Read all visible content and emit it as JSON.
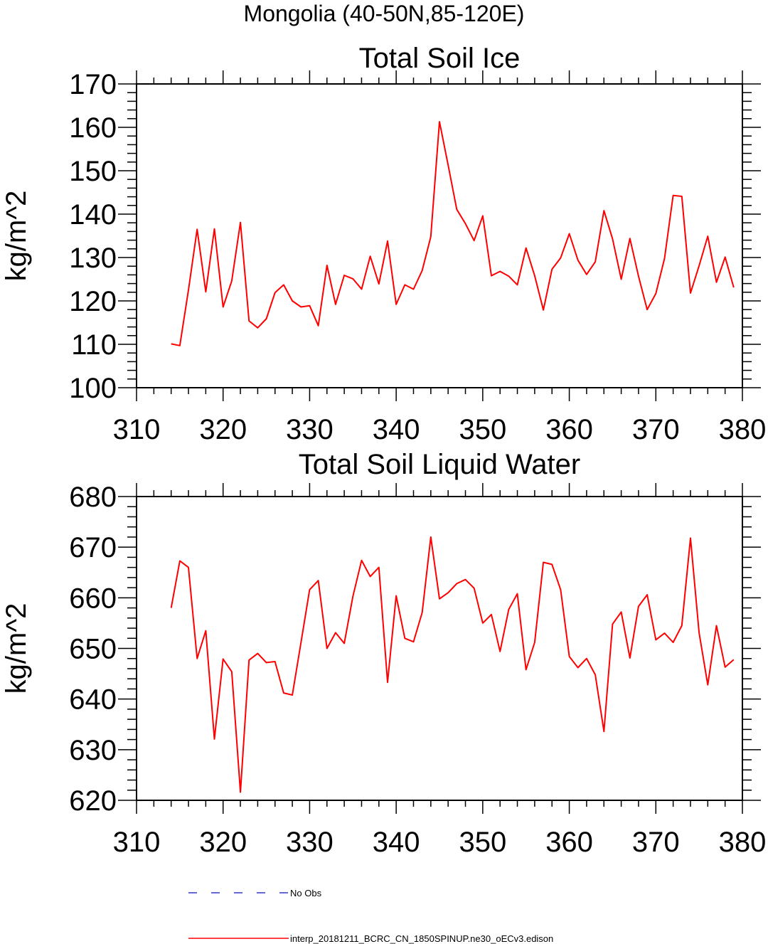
{
  "figure_title": "Mongolia (40-50N,85-120E)",
  "legend": {
    "obs_label": "No Obs",
    "obs_color": "#3333cc",
    "model_label": "interp_20181211_BCRC_CN_1850SPINUP.ne30_oECv3.edison",
    "model_color": "#ff0000"
  },
  "chart_data": [
    {
      "type": "line",
      "title": "Total Soil Ice",
      "ylabel": "kg/m^2",
      "xlabel": "",
      "xlim": [
        310,
        380
      ],
      "ylim": [
        100,
        170
      ],
      "xticks": [
        310,
        320,
        330,
        340,
        350,
        360,
        370,
        380
      ],
      "yticks": [
        100,
        110,
        120,
        130,
        140,
        150,
        160,
        170
      ],
      "grid": false,
      "series": [
        {
          "color": "#ff0000",
          "x": [
            314,
            315,
            316,
            317,
            318,
            319,
            320,
            321,
            322,
            323,
            324,
            325,
            326,
            327,
            328,
            329,
            330,
            331,
            332,
            333,
            334,
            335,
            336,
            337,
            338,
            339,
            340,
            341,
            342,
            343,
            344,
            345,
            346,
            347,
            348,
            349,
            350,
            351,
            352,
            353,
            354,
            355,
            356,
            357,
            358,
            359,
            360,
            361,
            362,
            363,
            364,
            365,
            366,
            367,
            368,
            369,
            370,
            371,
            372,
            373,
            374,
            375,
            376,
            377,
            378,
            379
          ],
          "y": [
            110.1,
            109.7,
            122.5,
            136.5,
            122.1,
            136.6,
            118.6,
            124.6,
            138.1,
            115.4,
            113.8,
            115.9,
            121.9,
            123.7,
            120.0,
            118.6,
            118.9,
            114.3,
            128.2,
            119.2,
            125.9,
            125.1,
            122.7,
            130.3,
            123.9,
            133.8,
            119.2,
            123.7,
            122.7,
            127.0,
            134.8,
            161.3,
            151.3,
            141.1,
            137.8,
            133.9,
            139.6,
            125.8,
            126.8,
            125.7,
            123.7,
            132.2,
            125.8,
            117.9,
            127.3,
            129.9,
            135.5,
            129.4,
            126.1,
            129.0,
            140.8,
            134.3,
            125.0,
            134.4,
            125.7,
            118.0,
            121.7,
            129.8,
            144.3,
            144.1,
            121.8,
            128.1,
            134.9,
            124.3,
            130.1,
            123.1
          ]
        }
      ]
    },
    {
      "type": "line",
      "title": "Total Soil Liquid Water",
      "ylabel": "kg/m^2",
      "xlabel": "",
      "xlim": [
        310,
        380
      ],
      "ylim": [
        620,
        680
      ],
      "xticks": [
        310,
        320,
        330,
        340,
        350,
        360,
        370,
        380
      ],
      "yticks": [
        620,
        630,
        640,
        650,
        660,
        670,
        680
      ],
      "grid": false,
      "series": [
        {
          "color": "#ff0000",
          "x": [
            314,
            315,
            316,
            317,
            318,
            319,
            320,
            321,
            322,
            323,
            324,
            325,
            326,
            327,
            328,
            329,
            330,
            331,
            332,
            333,
            334,
            335,
            336,
            337,
            338,
            339,
            340,
            341,
            342,
            343,
            344,
            345,
            346,
            347,
            348,
            349,
            350,
            351,
            352,
            353,
            354,
            355,
            356,
            357,
            358,
            359,
            360,
            361,
            362,
            363,
            364,
            365,
            366,
            367,
            368,
            369,
            370,
            371,
            372,
            373,
            374,
            375,
            376,
            377,
            378,
            379
          ],
          "y": [
            658.0,
            667.3,
            666.0,
            648.0,
            653.5,
            632.1,
            647.9,
            645.4,
            621.6,
            647.7,
            649.0,
            647.2,
            647.4,
            641.2,
            640.8,
            651.2,
            661.6,
            663.4,
            650.0,
            653.1,
            651.0,
            660.3,
            667.4,
            664.2,
            666.0,
            643.3,
            660.4,
            652.0,
            651.3,
            657.1,
            672.0,
            659.8,
            661.0,
            662.8,
            663.6,
            661.9,
            655.0,
            656.7,
            649.4,
            657.7,
            660.8,
            645.8,
            651.2,
            667.0,
            666.6,
            661.6,
            648.4,
            646.2,
            648.0,
            644.8,
            633.6,
            654.8,
            657.2,
            648.1,
            658.3,
            660.6,
            651.7,
            653.0,
            651.2,
            654.5,
            671.8,
            653.1,
            642.8,
            654.5,
            646.3,
            647.8
          ]
        }
      ]
    }
  ]
}
